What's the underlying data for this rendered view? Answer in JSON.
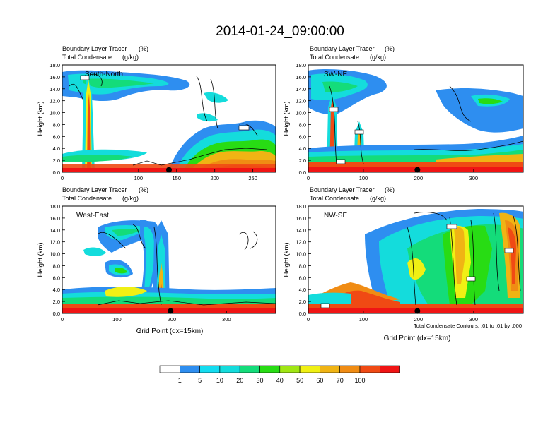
{
  "main_title": "2014-01-24_09:00:00",
  "panel_header": {
    "line1_name": "Boundary Layer Tracer",
    "line1_unit": "(%)",
    "line2_name": "Total Condensate",
    "line2_unit": "(g/kg)"
  },
  "contour_note": "Total Condensate Contours: .01 to .01 by .000",
  "colors": {
    "fill_dark_red": "#f01414",
    "fill_red": "#f04a14",
    "fill_orange": "#f08c14",
    "fill_yellow_orange": "#f0b414",
    "fill_yellow": "#f0f014",
    "fill_green": "#28dc14",
    "fill_light_green": "#14dc7a",
    "fill_cyan": "#14dcdc",
    "fill_blue": "#2e8ef0"
  },
  "chart_data": [
    {
      "type": "heatmap",
      "panel_label": "South-North",
      "ylabel": "Height (km)",
      "xlabel": "",
      "xlim": [
        0,
        280
      ],
      "ylim": [
        0,
        18
      ],
      "xticks": [
        "0",
        "100",
        "150",
        "200",
        "250"
      ],
      "yticks": [
        "0.0",
        "2.0",
        "4.0",
        "6.0",
        "8.0",
        "10.0",
        "12.0",
        "14.0",
        "16.0",
        "18.0"
      ],
      "contour_labels": [
        "0.01",
        "0.01"
      ],
      "marker_point": {
        "x": 140,
        "y": 0.4
      }
    },
    {
      "type": "heatmap",
      "panel_label": "SW-NE",
      "ylabel": "Height (km)",
      "xlabel": "",
      "xlim": [
        0,
        390
      ],
      "ylim": [
        0,
        18
      ],
      "xticks": [
        "0",
        "100",
        "200",
        "300"
      ],
      "yticks": [
        "0.0",
        "2.0",
        "4.0",
        "6.0",
        "8.0",
        "10.0",
        "12.0",
        "14.0",
        "16.0",
        "18.0"
      ],
      "contour_labels": [
        "0.01",
        "0.01",
        "0.01"
      ],
      "marker_point": {
        "x": 198,
        "y": 0.4
      }
    },
    {
      "type": "heatmap",
      "panel_label": "West-East",
      "ylabel": "Height (km)",
      "xlabel": "Grid Point (dx=15km)",
      "xlim": [
        0,
        390
      ],
      "ylim": [
        0,
        18
      ],
      "xticks": [
        "0",
        "100",
        "200",
        "300"
      ],
      "yticks": [
        "0.0",
        "2.0",
        "4.0",
        "6.0",
        "8.0",
        "10.0",
        "12.0",
        "14.0",
        "16.0",
        "18.0"
      ],
      "contour_labels": [],
      "marker_point": {
        "x": 198,
        "y": 0.4
      }
    },
    {
      "type": "heatmap",
      "panel_label": "NW-SE",
      "ylabel": "Height (km)",
      "xlabel": "Grid Point (dx=15km)",
      "xlim": [
        0,
        390
      ],
      "ylim": [
        0,
        18
      ],
      "xticks": [
        "0",
        "100",
        "200",
        "300"
      ],
      "yticks": [
        "0.0",
        "2.0",
        "4.0",
        "6.0",
        "8.0",
        "10.0",
        "12.0",
        "14.0",
        "16.0",
        "18.0"
      ],
      "contour_labels": [
        "0.01",
        "0.01",
        "0.01",
        "0.01"
      ],
      "marker_point": {
        "x": 198,
        "y": 0.4
      }
    }
  ],
  "colorbar": {
    "tick_labels": [
      "1",
      "5",
      "10",
      "20",
      "30",
      "40",
      "50",
      "60",
      "70",
      "100"
    ],
    "colors": [
      "#ffffff",
      "#2e8ef0",
      "#14dcf0",
      "#14dcdc",
      "#14dc7a",
      "#28dc14",
      "#a0e614",
      "#f0f014",
      "#f0b414",
      "#f08c14",
      "#f04a14",
      "#f01414"
    ]
  }
}
